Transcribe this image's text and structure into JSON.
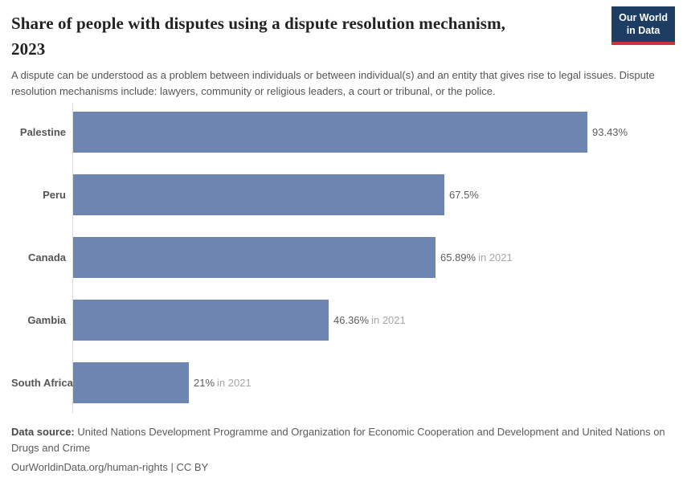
{
  "header": {
    "title_line1": "Share of people with disputes using a dispute resolution mechanism,",
    "title_line2": "2023",
    "subtitle": "A dispute can be understood as a problem between individuals or between individual(s) and an entity that gives rise to legal issues. Dispute resolution mechanisms include: lawyers, community or religious leaders, a court or tribunal, or the police.",
    "logo": {
      "line1": "Our World",
      "line2": "in Data",
      "bg_color": "#1d3d63",
      "accent_color": "#cf3139"
    }
  },
  "chart_data": {
    "type": "bar",
    "orientation": "horizontal",
    "title": "Share of people with disputes using a dispute resolution mechanism, 2023",
    "categories": [
      "Palestine",
      "Peru",
      "Canada",
      "Gambia",
      "South Africa"
    ],
    "values": [
      93.43,
      67.5,
      65.89,
      46.36,
      21
    ],
    "value_labels": [
      "93.43%",
      "67.5%",
      "65.89%",
      "46.36%",
      "21%"
    ],
    "year_notes": [
      "",
      "",
      "in 2021",
      "in 2021",
      "in 2021"
    ],
    "xlim": [
      0,
      100
    ],
    "grid": "off",
    "legend": "none",
    "bar_color": "#6d85b0",
    "axis_color": "#dcdcdc"
  },
  "footer": {
    "source_label": "Data source:",
    "source_text": " United Nations Development Programme and Organization for Economic Cooperation and Development and United Nations on Drugs and Crime",
    "link_text": "OurWorldinData.org/human-rights",
    "license_text": " | CC BY"
  }
}
